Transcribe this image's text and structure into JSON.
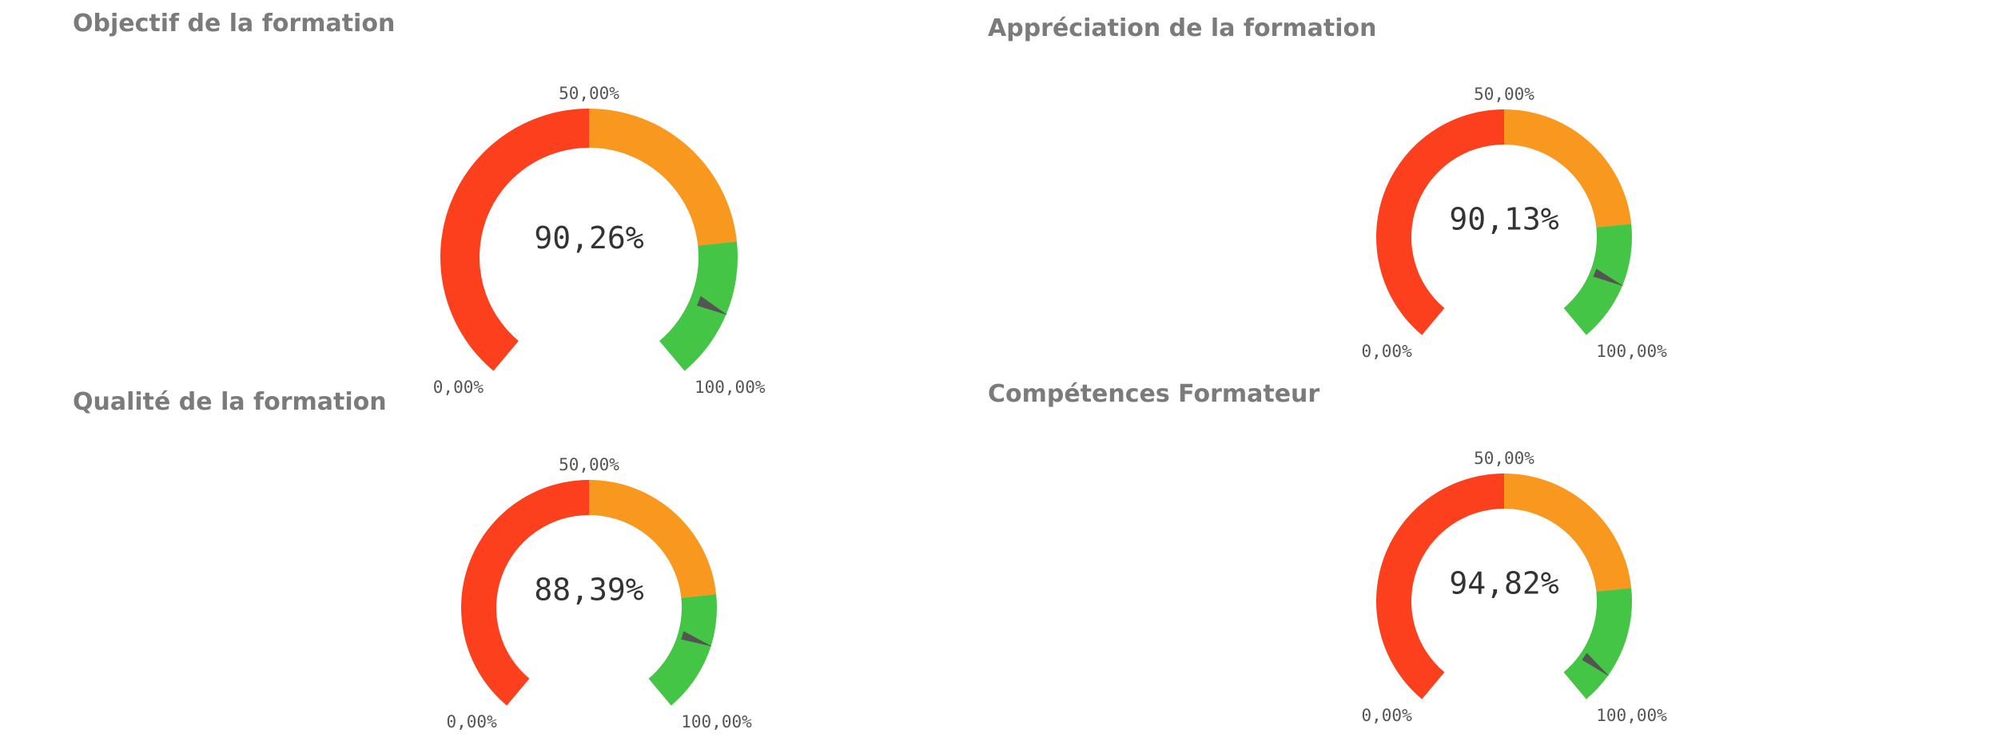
{
  "chart_data": [
    {
      "type": "gauge",
      "title": "Objectif de la formation",
      "value": 90.26,
      "value_label": "90,26%",
      "min": 0,
      "max": 100,
      "min_label": "0,00%",
      "mid_label": "50,00%",
      "max_label": "100,00%",
      "bands": [
        {
          "from": 0,
          "to": 50,
          "color": "#fc3f1c"
        },
        {
          "from": 50,
          "to": 80,
          "color": "#f8981f"
        },
        {
          "from": 80,
          "to": 100,
          "color": "#45c545"
        }
      ],
      "needle_color": "#545454"
    },
    {
      "type": "gauge",
      "title": "Appréciation de la formation",
      "value": 90.13,
      "value_label": "90,13%",
      "min": 0,
      "max": 100,
      "min_label": "0,00%",
      "mid_label": "50,00%",
      "max_label": "100,00%",
      "bands": [
        {
          "from": 0,
          "to": 50,
          "color": "#fc3f1c"
        },
        {
          "from": 50,
          "to": 80,
          "color": "#f8981f"
        },
        {
          "from": 80,
          "to": 100,
          "color": "#45c545"
        }
      ],
      "needle_color": "#545454"
    },
    {
      "type": "gauge",
      "title": "Qualité de la formation",
      "value": 88.39,
      "value_label": "88,39%",
      "min": 0,
      "max": 100,
      "min_label": "0,00%",
      "mid_label": "50,00%",
      "max_label": "100,00%",
      "bands": [
        {
          "from": 0,
          "to": 50,
          "color": "#fc3f1c"
        },
        {
          "from": 50,
          "to": 80,
          "color": "#f8981f"
        },
        {
          "from": 80,
          "to": 100,
          "color": "#45c545"
        }
      ],
      "needle_color": "#545454"
    },
    {
      "type": "gauge",
      "title": "Compétences Formateur",
      "value": 94.82,
      "value_label": "94,82%",
      "min": 0,
      "max": 100,
      "min_label": "0,00%",
      "mid_label": "50,00%",
      "max_label": "100,00%",
      "bands": [
        {
          "from": 0,
          "to": 50,
          "color": "#fc3f1c"
        },
        {
          "from": 50,
          "to": 80,
          "color": "#f8981f"
        },
        {
          "from": 80,
          "to": 100,
          "color": "#45c545"
        }
      ],
      "needle_color": "#545454"
    }
  ]
}
